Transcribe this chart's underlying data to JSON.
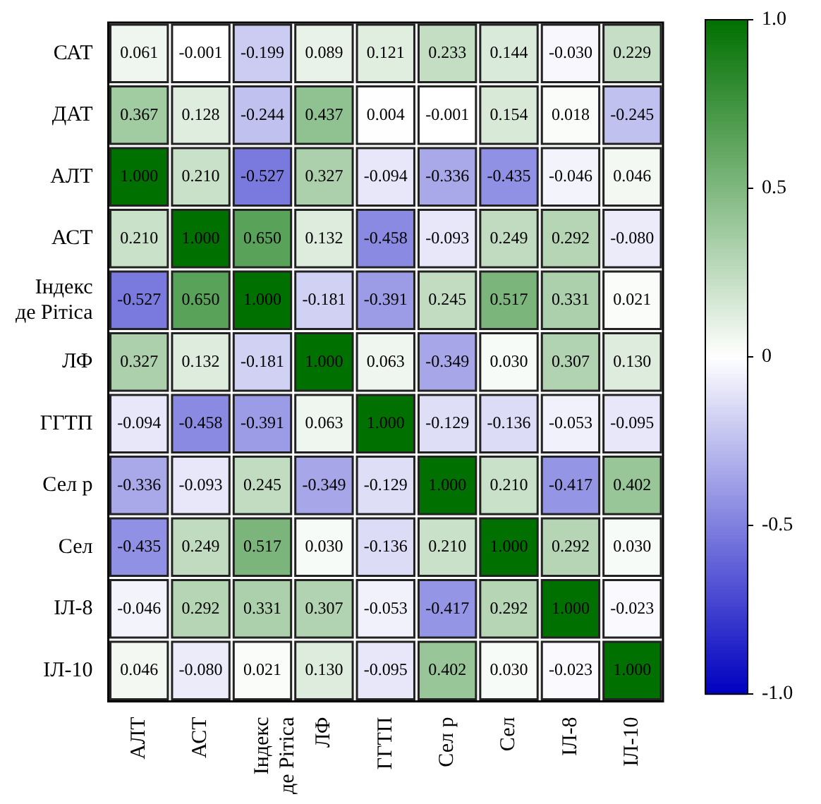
{
  "chart_data": {
    "type": "heatmap",
    "categories": [
      "АЛТ",
      "АСТ",
      "Індекс де Рітіса",
      "ЛФ",
      "ГГТП",
      "Сел р",
      "Сел",
      "ІЛ-8",
      "ІЛ-10"
    ],
    "y_categories": [
      "САТ",
      "ДАТ",
      "АЛТ",
      "АСТ",
      "Індекс де Рітіса",
      "ЛФ",
      "ГГТП",
      "Сел р",
      "Сел",
      "ІЛ-8",
      "ІЛ-10"
    ],
    "cells": [
      [
        0.061,
        -0.001,
        -0.199,
        0.089,
        0.121,
        0.233,
        0.144,
        -0.03,
        0.229
      ],
      [
        0.367,
        0.128,
        -0.244,
        0.437,
        0.004,
        -0.001,
        0.154,
        0.018,
        -0.245
      ],
      [
        1.0,
        0.21,
        -0.527,
        0.327,
        -0.094,
        -0.336,
        -0.435,
        -0.046,
        0.046
      ],
      [
        0.21,
        1.0,
        0.65,
        0.132,
        -0.458,
        -0.093,
        0.249,
        0.292,
        -0.08
      ],
      [
        -0.527,
        0.65,
        1.0,
        -0.181,
        -0.391,
        0.245,
        0.517,
        0.331,
        0.021
      ],
      [
        0.327,
        0.132,
        -0.181,
        1.0,
        0.063,
        -0.349,
        0.03,
        0.307,
        0.13
      ],
      [
        -0.094,
        -0.458,
        -0.391,
        0.063,
        1.0,
        -0.129,
        -0.136,
        -0.053,
        -0.095
      ],
      [
        -0.336,
        -0.093,
        0.245,
        -0.349,
        -0.129,
        1.0,
        0.21,
        -0.417,
        0.402
      ],
      [
        -0.435,
        0.249,
        0.517,
        0.03,
        -0.136,
        0.21,
        1.0,
        0.292,
        0.03
      ],
      [
        -0.046,
        0.292,
        0.331,
        0.307,
        -0.053,
        -0.417,
        0.292,
        1.0,
        -0.023
      ],
      [
        0.046,
        -0.08,
        0.021,
        0.13,
        -0.095,
        0.402,
        0.03,
        -0.023,
        1.0
      ]
    ],
    "cell_labels": [
      [
        "0.061",
        "-0.001",
        "-0.199",
        "0.089",
        "0.121",
        "0.233",
        "0.144",
        "-0.030",
        "0.229"
      ],
      [
        "0.367",
        "0.128",
        "-0.244",
        "0.437",
        "0.004",
        "-0.001",
        "0.154",
        "0.018",
        "-0.245"
      ],
      [
        "1.000",
        "0.210",
        "-0.527",
        "0.327",
        "-0.094",
        "-0.336",
        "-0.435",
        "-0.046",
        "0.046"
      ],
      [
        "0.210",
        "1.000",
        "0.650",
        "0.132",
        "-0.458",
        "-0.093",
        "0.249",
        "0.292",
        "-0.080"
      ],
      [
        "-0.527",
        "0.650",
        "1.000",
        "-0.181",
        "-0.391",
        "0.245",
        "0.517",
        "0.331",
        "0.021"
      ],
      [
        "0.327",
        "0.132",
        "-0.181",
        "1.000",
        "0.063",
        "-0.349",
        "0.030",
        "0.307",
        "0.130"
      ],
      [
        "-0.094",
        "-0.458",
        "-0.391",
        "0.063",
        "1.000",
        "-0.129",
        "-0.136",
        "-0.053",
        "-0.095"
      ],
      [
        "-0.336",
        "-0.093",
        "0.245",
        "-0.349",
        "-0.129",
        "1.000",
        "0.210",
        "-0.417",
        "0.402"
      ],
      [
        "-0.435",
        "0.249",
        "0.517",
        "0.030",
        "-0.136",
        "0.210",
        "1.000",
        "0.292",
        "0.030"
      ],
      [
        "-0.046",
        "0.292",
        "0.331",
        "0.307",
        "-0.053",
        "-0.417",
        "0.292",
        "1.000",
        "-0.023"
      ],
      [
        "0.046",
        "-0.080",
        "0.021",
        "0.130",
        "-0.095",
        "0.402",
        "0.030",
        "-0.023",
        "1.000"
      ]
    ],
    "clim": [
      -1,
      1
    ],
    "cticks": [
      {
        "value": 1,
        "label": "1.0"
      },
      0.5,
      0,
      -0.5,
      {
        "value": -1,
        "label": "-1.0"
      }
    ]
  }
}
